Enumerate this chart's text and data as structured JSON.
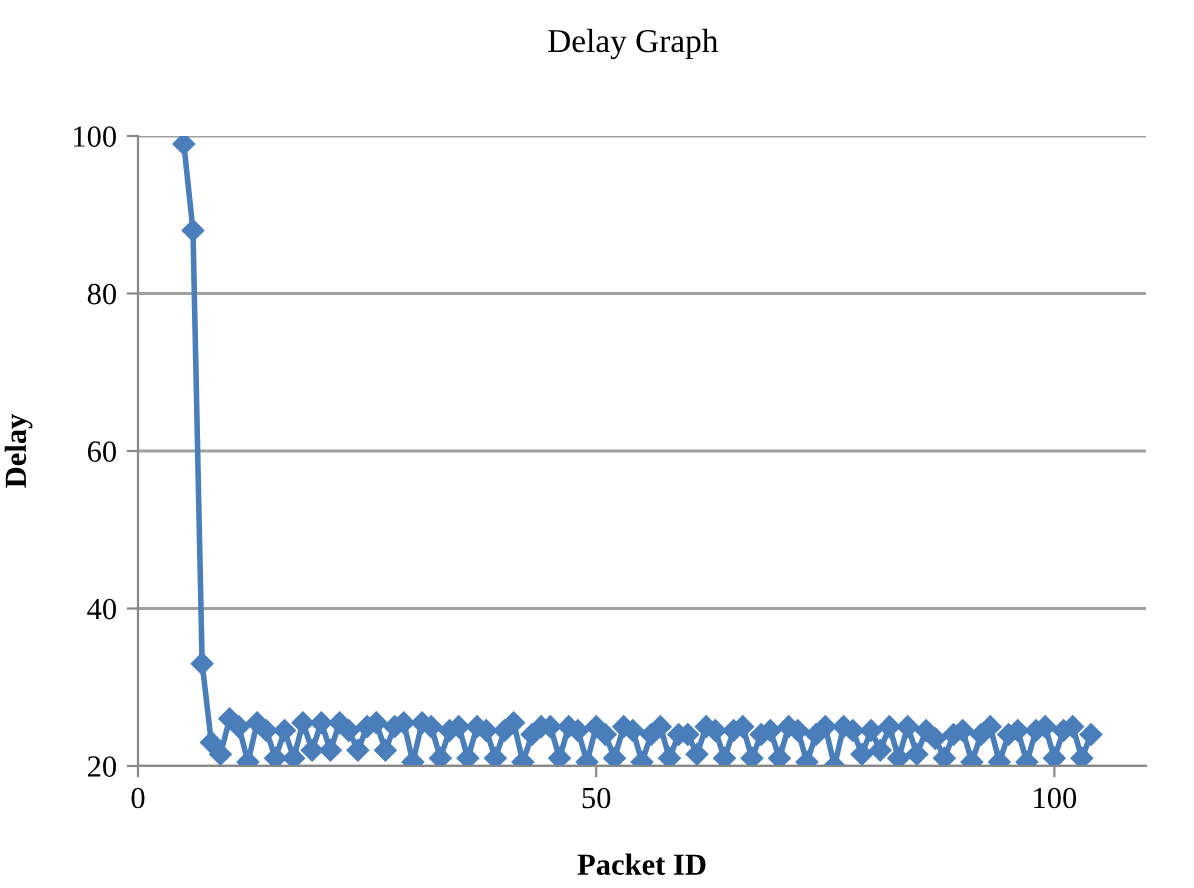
{
  "chart_data": {
    "type": "line",
    "title": "Delay Graph",
    "xlabel": "Packet ID",
    "ylabel": "Delay",
    "x": [
      5,
      6,
      7,
      8,
      9,
      10,
      11,
      12,
      13,
      14,
      15,
      16,
      17,
      18,
      19,
      20,
      21,
      22,
      23,
      24,
      25,
      26,
      27,
      28,
      29,
      30,
      31,
      32,
      33,
      34,
      35,
      36,
      37,
      38,
      39,
      40,
      41,
      42,
      43,
      44,
      45,
      46,
      47,
      48,
      49,
      50,
      51,
      52,
      53,
      54,
      55,
      56,
      57,
      58,
      59,
      60,
      61,
      62,
      63,
      64,
      65,
      66,
      67,
      68,
      69,
      70,
      71,
      72,
      73,
      74,
      75,
      76,
      77,
      78,
      79,
      80,
      81,
      82,
      83,
      84,
      85,
      86,
      87,
      88,
      89,
      90,
      91,
      92,
      93,
      94,
      95,
      96,
      97,
      98,
      99,
      100,
      101,
      102,
      103,
      104
    ],
    "series": [
      {
        "color": "#4a7ebb",
        "values": [
          99,
          88,
          33,
          23,
          21.5,
          26,
          25,
          20.5,
          25.5,
          24.5,
          21,
          24.5,
          21,
          25.5,
          22,
          25.5,
          22,
          25.5,
          24.5,
          22,
          25,
          25.5,
          22,
          25,
          25.5,
          20.5,
          25.5,
          25,
          21,
          24.5,
          25,
          21,
          25,
          24.5,
          21,
          24.5,
          25.5,
          20.5,
          24,
          25,
          25,
          21,
          25,
          24.5,
          20.5,
          25,
          24,
          21,
          25,
          24.5,
          20.5,
          24,
          25,
          21,
          24,
          24,
          21.5,
          25,
          24.5,
          21,
          24.5,
          25,
          21,
          24,
          24.5,
          21,
          25,
          24.5,
          20.5,
          24,
          25,
          20,
          25,
          24.5,
          21.5,
          24.5,
          22,
          25,
          21,
          25,
          21.5,
          24.5,
          23.5,
          21,
          24,
          24.5,
          20.5,
          24,
          25,
          20.5,
          24,
          24.5,
          20.5,
          24.5,
          25,
          21,
          24.5,
          25,
          21,
          24
        ]
      }
    ],
    "xlim": [
      0,
      110
    ],
    "xticks": [
      0,
      50,
      100
    ],
    "ylim": [
      20,
      100
    ],
    "yticks": [
      20,
      40,
      60,
      80,
      100
    ],
    "grid": "y",
    "marker": "diamond",
    "line_style": "solid",
    "legend": false
  }
}
